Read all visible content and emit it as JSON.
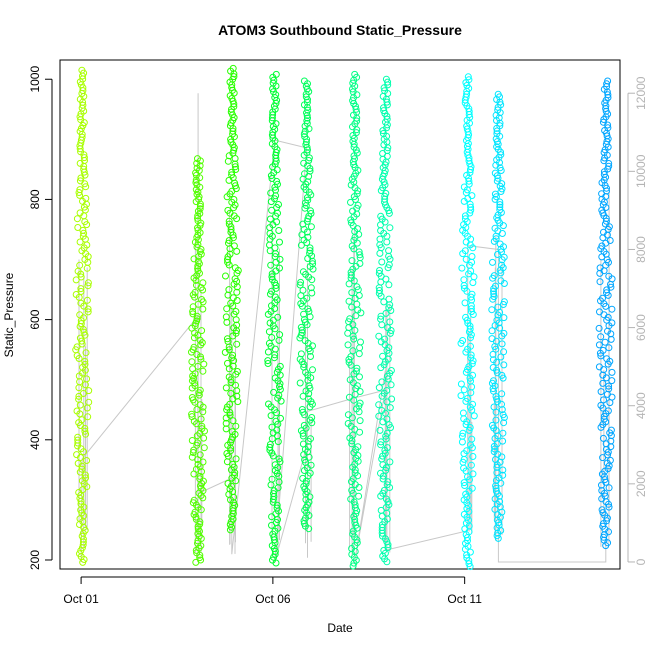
{
  "chart_data": {
    "type": "scatter",
    "title": "ATOM3 Southbound Static_Pressure",
    "xlabel": "Date",
    "ylabel": "Static_Pressure",
    "x_unit": "days since Oct 01",
    "x_ticks": [
      {
        "label": "Oct 01",
        "value": 0
      },
      {
        "label": "Oct 06",
        "value": 5
      },
      {
        "label": "Oct 11",
        "value": 10
      }
    ],
    "xlim": [
      -0.55,
      14.05
    ],
    "ylim": [
      185,
      1032
    ],
    "y_ticks": [
      200,
      400,
      600,
      800,
      1000
    ],
    "y2lim": [
      -180,
      12850
    ],
    "y2_ticks": [
      0,
      2000,
      4000,
      6000,
      8000,
      10000,
      12000
    ],
    "y2_color": "#b4b4b4",
    "grid": false,
    "marker": "open-circle",
    "bursts": [
      {
        "x": 0.03,
        "ymin": 196,
        "ymax": 1015,
        "color": "#a8ff00"
      },
      {
        "x": 3.05,
        "ymin": 196,
        "ymax": 868,
        "color": "#52ff00"
      },
      {
        "x": 3.93,
        "ymin": 250,
        "ymax": 1018,
        "color": "#29ff00"
      },
      {
        "x": 5.05,
        "ymin": 195,
        "ymax": 1008,
        "color": "#00ff33"
      },
      {
        "x": 5.88,
        "ymin": 252,
        "ymax": 997,
        "color": "#00ff5c"
      },
      {
        "x": 7.13,
        "ymin": 190,
        "ymax": 1008,
        "color": "#00ff85"
      },
      {
        "x": 7.93,
        "ymin": 197,
        "ymax": 1000,
        "color": "#00ffad"
      },
      {
        "x": 10.08,
        "ymin": 189,
        "ymax": 1004,
        "color": "#00ffff"
      },
      {
        "x": 10.88,
        "ymin": 236,
        "ymax": 975,
        "color": "#00e5ff"
      },
      {
        "x": 13.68,
        "ymin": 224,
        "ymax": 997,
        "color": "#00a6ff"
      }
    ],
    "secondary_series": {
      "name": "",
      "color": "#c8c8c8",
      "points": [
        [
          0.0,
          0
        ],
        [
          0.03,
          2640
        ],
        [
          3.05,
          6300
        ],
        [
          3.05,
          0
        ],
        [
          3.05,
          12000
        ],
        [
          3.05,
          1750
        ],
        [
          3.93,
          2150
        ],
        [
          3.93,
          6600
        ],
        [
          3.93,
          200
        ],
        [
          5.05,
          10800
        ],
        [
          5.88,
          10600
        ],
        [
          5.05,
          0
        ],
        [
          5.88,
          2950
        ],
        [
          5.88,
          3850
        ],
        [
          7.13,
          4200
        ],
        [
          7.93,
          4400
        ],
        [
          7.13,
          0
        ],
        [
          7.93,
          4900
        ],
        [
          7.93,
          300
        ],
        [
          10.08,
          800
        ],
        [
          10.08,
          8100
        ],
        [
          10.88,
          8000
        ],
        [
          10.88,
          0
        ],
        [
          13.68,
          0
        ],
        [
          13.68,
          600
        ]
      ]
    }
  }
}
